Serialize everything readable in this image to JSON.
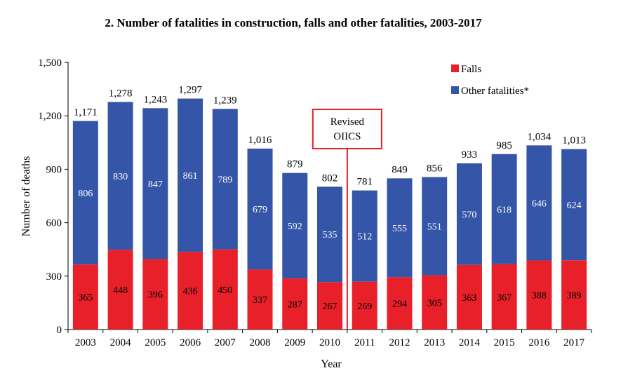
{
  "chart_data": {
    "type": "bar",
    "stacked": true,
    "title": "2. Number of fatalities in construction, falls and other fatalities, 2003-2017",
    "xlabel": "Year",
    "ylabel": "Number of deaths",
    "ylim": [
      0,
      1500
    ],
    "yticks": [
      0,
      300,
      600,
      900,
      1200,
      1500
    ],
    "ytick_labels": [
      "0",
      "300",
      "600",
      "900",
      "1,200",
      "1,500"
    ],
    "categories": [
      "2003",
      "2004",
      "2005",
      "2006",
      "2007",
      "2008",
      "2009",
      "2010",
      "2011",
      "2012",
      "2013",
      "2014",
      "2015",
      "2016",
      "2017"
    ],
    "series": [
      {
        "name": "Falls",
        "color": "#e8202a",
        "label_color": "#000000",
        "values": [
          365,
          448,
          396,
          436,
          450,
          337,
          287,
          267,
          269,
          294,
          305,
          363,
          367,
          388,
          389
        ]
      },
      {
        "name": "Other fatalities*",
        "color": "#3455a8",
        "label_color": "#ffffff",
        "values": [
          806,
          830,
          847,
          861,
          789,
          679,
          592,
          535,
          512,
          555,
          551,
          570,
          618,
          646,
          624
        ]
      }
    ],
    "totals": [
      1171,
      1278,
      1243,
      1297,
      1239,
      1016,
      879,
      802,
      781,
      849,
      856,
      933,
      985,
      1034,
      1013
    ],
    "total_labels": [
      "1,171",
      "1,278",
      "1,243",
      "1,297",
      "1,239",
      "1,016",
      "879",
      "802",
      "781",
      "849",
      "856",
      "933",
      "985",
      "1,034",
      "1,013"
    ],
    "legend_position": "top-right",
    "grid": false,
    "annotation": {
      "lines": [
        "Revised",
        "OIICS"
      ],
      "after_category": "2010",
      "color": "#e8202a"
    }
  }
}
